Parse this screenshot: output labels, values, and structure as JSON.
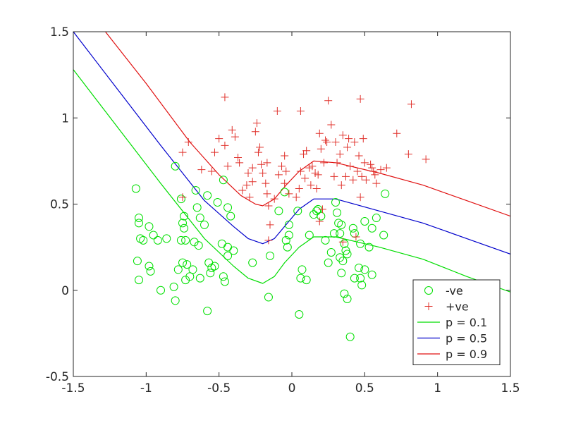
{
  "chart_data": {
    "type": "scatter",
    "title": "",
    "xlabel": "",
    "ylabel": "",
    "xlim": [
      -1.5,
      1.5
    ],
    "ylim": [
      -0.5,
      1.5
    ],
    "xticks": [
      -1.5,
      -1,
      -0.5,
      0,
      0.5,
      1,
      1.5
    ],
    "xtick_labels": [
      "-1.5",
      "-1",
      "-0.5",
      "0",
      "0.5",
      "1",
      "1.5"
    ],
    "yticks": [
      -0.5,
      0,
      0.5,
      1,
      1.5
    ],
    "ytick_labels": [
      "-0.5",
      "0",
      "0.5",
      "1",
      "1.5"
    ],
    "grid": false,
    "legend_position": "bottom-right",
    "colors": {
      "neg": "#00e000",
      "pos": "#e0302a",
      "p01": "#00dd00",
      "p05": "#0000cc",
      "p09": "#e01010",
      "axis": "#262626"
    },
    "legend": [
      {
        "label": "-ve",
        "kind": "circle",
        "color": "#00e000"
      },
      {
        "label": "+ve",
        "kind": "plus",
        "color": "#e0302a"
      },
      {
        "label": "p = 0.1",
        "kind": "line",
        "color": "#00dd00"
      },
      {
        "label": "p = 0.5",
        "kind": "line",
        "color": "#0000cc"
      },
      {
        "label": "p = 0.9",
        "kind": "line",
        "color": "#e01010"
      }
    ],
    "series": [
      {
        "name": "-ve",
        "kind": "scatter",
        "marker": "circle",
        "color": "#00e000",
        "points": [
          [
            -1.07,
            0.59
          ],
          [
            -1.05,
            0.42
          ],
          [
            -1.05,
            0.39
          ],
          [
            -1.04,
            0.3
          ],
          [
            -1.02,
            0.29
          ],
          [
            -1.06,
            0.17
          ],
          [
            -1.05,
            0.06
          ],
          [
            -0.98,
            0.37
          ],
          [
            -0.95,
            0.32
          ],
          [
            -0.92,
            0.29
          ],
          [
            -0.98,
            0.14
          ],
          [
            -0.97,
            0.11
          ],
          [
            -0.9,
            0.0
          ],
          [
            -0.86,
            0.3
          ],
          [
            -0.8,
            0.72
          ],
          [
            -0.76,
            0.53
          ],
          [
            -0.74,
            0.43
          ],
          [
            -0.75,
            0.39
          ],
          [
            -0.74,
            0.36
          ],
          [
            -0.76,
            0.29
          ],
          [
            -0.73,
            0.29
          ],
          [
            -0.75,
            0.16
          ],
          [
            -0.72,
            0.15
          ],
          [
            -0.7,
            0.08
          ],
          [
            -0.73,
            0.06
          ],
          [
            -0.68,
            0.12
          ],
          [
            -0.66,
            0.58
          ],
          [
            -0.65,
            0.48
          ],
          [
            -0.63,
            0.42
          ],
          [
            -0.6,
            0.38
          ],
          [
            -0.67,
            0.28
          ],
          [
            -0.64,
            0.26
          ],
          [
            -0.57,
            0.16
          ],
          [
            -0.55,
            0.13
          ],
          [
            -0.53,
            0.14
          ],
          [
            -0.56,
            0.1
          ],
          [
            -0.63,
            0.07
          ],
          [
            -0.8,
            -0.06
          ],
          [
            -0.78,
            0.12
          ],
          [
            -0.81,
            0.02
          ],
          [
            -0.58,
            -0.12
          ],
          [
            -0.58,
            0.55
          ],
          [
            -0.51,
            0.51
          ],
          [
            -0.47,
            0.64
          ],
          [
            -0.44,
            0.48
          ],
          [
            -0.42,
            0.43
          ],
          [
            -0.48,
            0.27
          ],
          [
            -0.44,
            0.25
          ],
          [
            -0.44,
            0.2
          ],
          [
            -0.4,
            0.23
          ],
          [
            -0.47,
            0.08
          ],
          [
            -0.46,
            0.05
          ],
          [
            -0.27,
            0.16
          ],
          [
            -0.16,
            -0.04
          ],
          [
            -0.15,
            0.2
          ],
          [
            -0.09,
            0.46
          ],
          [
            -0.05,
            0.57
          ],
          [
            -0.02,
            0.38
          ],
          [
            -0.02,
            0.32
          ],
          [
            -0.04,
            0.29
          ],
          [
            -0.03,
            0.25
          ],
          [
            0.04,
            0.46
          ],
          [
            0.07,
            0.12
          ],
          [
            0.06,
            0.07
          ],
          [
            0.05,
            -0.14
          ],
          [
            0.1,
            0.06
          ],
          [
            0.12,
            0.32
          ],
          [
            0.15,
            0.44
          ],
          [
            0.17,
            0.46
          ],
          [
            0.18,
            0.47
          ],
          [
            0.2,
            0.43
          ],
          [
            0.23,
            0.29
          ],
          [
            0.25,
            0.16
          ],
          [
            0.27,
            0.22
          ],
          [
            0.3,
            0.51
          ],
          [
            0.29,
            0.33
          ],
          [
            0.31,
            0.45
          ],
          [
            0.33,
            0.33
          ],
          [
            0.32,
            0.39
          ],
          [
            0.34,
            0.38
          ],
          [
            0.33,
            0.19
          ],
          [
            0.35,
            0.17
          ],
          [
            0.36,
            0.27
          ],
          [
            0.34,
            0.1
          ],
          [
            0.36,
            -0.02
          ],
          [
            0.37,
            0.23
          ],
          [
            0.38,
            0.21
          ],
          [
            0.38,
            -0.05
          ],
          [
            0.4,
            -0.27
          ],
          [
            0.42,
            0.36
          ],
          [
            0.43,
            0.33
          ],
          [
            0.43,
            0.07
          ],
          [
            0.46,
            0.13
          ],
          [
            0.47,
            0.27
          ],
          [
            0.47,
            0.07
          ],
          [
            0.48,
            0.03
          ],
          [
            0.5,
            0.12
          ],
          [
            0.5,
            0.4
          ],
          [
            0.53,
            0.25
          ],
          [
            0.55,
            0.36
          ],
          [
            0.58,
            0.42
          ],
          [
            0.55,
            0.09
          ],
          [
            0.63,
            0.32
          ],
          [
            0.64,
            0.56
          ]
        ]
      },
      {
        "name": "+ve",
        "kind": "scatter",
        "marker": "plus",
        "color": "#e0302a",
        "points": [
          [
            -0.75,
            0.54
          ],
          [
            -0.75,
            0.8
          ],
          [
            -0.71,
            0.86
          ],
          [
            -0.62,
            0.7
          ],
          [
            -0.55,
            0.69
          ],
          [
            -0.53,
            0.8
          ],
          [
            -0.5,
            0.88
          ],
          [
            -0.46,
            0.84
          ],
          [
            -0.46,
            1.12
          ],
          [
            -0.44,
            0.72
          ],
          [
            -0.41,
            0.93
          ],
          [
            -0.39,
            0.89
          ],
          [
            -0.37,
            0.77
          ],
          [
            -0.36,
            0.74
          ],
          [
            -0.34,
            0.58
          ],
          [
            -0.31,
            0.61
          ],
          [
            -0.3,
            0.68
          ],
          [
            -0.29,
            0.54
          ],
          [
            -0.27,
            0.71
          ],
          [
            -0.27,
            0.63
          ],
          [
            -0.25,
            0.92
          ],
          [
            -0.24,
            0.97
          ],
          [
            -0.23,
            0.8
          ],
          [
            -0.22,
            0.83
          ],
          [
            -0.21,
            0.73
          ],
          [
            -0.2,
            0.68
          ],
          [
            -0.18,
            0.62
          ],
          [
            -0.17,
            0.74
          ],
          [
            -0.17,
            0.56
          ],
          [
            -0.16,
            0.49
          ],
          [
            -0.15,
            0.38
          ],
          [
            -0.12,
            0.53
          ],
          [
            -0.1,
            1.04
          ],
          [
            -0.09,
            0.67
          ],
          [
            -0.07,
            0.72
          ],
          [
            -0.05,
            0.62
          ],
          [
            -0.05,
            0.78
          ],
          [
            -0.04,
            0.69
          ],
          [
            -0.02,
            0.56
          ],
          [
            0.03,
            0.54
          ],
          [
            0.05,
            0.59
          ],
          [
            0.06,
            0.69
          ],
          [
            0.06,
            1.04
          ],
          [
            0.08,
            0.79
          ],
          [
            0.09,
            0.65
          ],
          [
            0.1,
            0.81
          ],
          [
            0.12,
            0.71
          ],
          [
            0.13,
            0.61
          ],
          [
            0.14,
            0.72
          ],
          [
            0.16,
            0.68
          ],
          [
            0.17,
            0.59
          ],
          [
            0.18,
            0.67
          ],
          [
            0.19,
            0.91
          ],
          [
            0.2,
            0.82
          ],
          [
            0.22,
            0.74
          ],
          [
            0.23,
            0.87
          ],
          [
            0.24,
            0.86
          ],
          [
            0.25,
            1.1
          ],
          [
            0.27,
            0.96
          ],
          [
            0.29,
            0.66
          ],
          [
            0.3,
            0.86
          ],
          [
            0.31,
            0.74
          ],
          [
            0.33,
            0.79
          ],
          [
            0.34,
            0.61
          ],
          [
            0.35,
            0.9
          ],
          [
            0.37,
            0.66
          ],
          [
            0.38,
            0.83
          ],
          [
            0.39,
            0.88
          ],
          [
            0.4,
            0.72
          ],
          [
            0.42,
            0.64
          ],
          [
            0.43,
            0.86
          ],
          [
            0.45,
            0.69
          ],
          [
            0.46,
            0.78
          ],
          [
            0.47,
            1.11
          ],
          [
            0.48,
            0.66
          ],
          [
            0.49,
            0.88
          ],
          [
            0.5,
            0.74
          ],
          [
            0.51,
            0.64
          ],
          [
            0.54,
            0.73
          ],
          [
            0.55,
            0.71
          ],
          [
            0.56,
            0.69
          ],
          [
            0.57,
            0.67
          ],
          [
            0.58,
            0.62
          ],
          [
            0.61,
            0.7
          ],
          [
            0.65,
            0.71
          ],
          [
            0.72,
            0.91
          ],
          [
            0.8,
            0.79
          ],
          [
            0.82,
            1.08
          ],
          [
            0.92,
            0.76
          ],
          [
            0.35,
            0.28
          ],
          [
            0.44,
            0.31
          ],
          [
            0.47,
            0.54
          ],
          [
            0.19,
            0.4
          ],
          [
            -0.16,
            0.29
          ],
          [
            0.21,
            0.47
          ]
        ]
      },
      {
        "name": "p = 0.1",
        "kind": "line",
        "color": "#00dd00",
        "points": [
          [
            -1.5,
            1.28
          ],
          [
            -1.2,
            0.95
          ],
          [
            -0.9,
            0.62
          ],
          [
            -0.6,
            0.3
          ],
          [
            -0.4,
            0.14
          ],
          [
            -0.3,
            0.07
          ],
          [
            -0.2,
            0.04
          ],
          [
            -0.12,
            0.08
          ],
          [
            -0.05,
            0.16
          ],
          [
            0.05,
            0.25
          ],
          [
            0.15,
            0.31
          ],
          [
            0.3,
            0.31
          ],
          [
            0.6,
            0.25
          ],
          [
            0.9,
            0.18
          ],
          [
            1.2,
            0.08
          ],
          [
            1.5,
            -0.01
          ]
        ]
      },
      {
        "name": "p = 0.5",
        "kind": "line",
        "color": "#0000cc",
        "points": [
          [
            -1.5,
            1.5
          ],
          [
            -1.2,
            1.17
          ],
          [
            -0.9,
            0.84
          ],
          [
            -0.6,
            0.52
          ],
          [
            -0.4,
            0.37
          ],
          [
            -0.3,
            0.3
          ],
          [
            -0.2,
            0.27
          ],
          [
            -0.12,
            0.3
          ],
          [
            -0.04,
            0.38
          ],
          [
            0.05,
            0.47
          ],
          [
            0.15,
            0.53
          ],
          [
            0.3,
            0.53
          ],
          [
            0.6,
            0.46
          ],
          [
            0.9,
            0.39
          ],
          [
            1.2,
            0.3
          ],
          [
            1.5,
            0.21
          ]
        ]
      },
      {
        "name": "p = 0.9",
        "kind": "line",
        "color": "#e01010",
        "points": [
          [
            -1.28,
            1.5
          ],
          [
            -1.0,
            1.2
          ],
          [
            -0.7,
            0.86
          ],
          [
            -0.5,
            0.67
          ],
          [
            -0.35,
            0.55
          ],
          [
            -0.25,
            0.5
          ],
          [
            -0.2,
            0.49
          ],
          [
            -0.12,
            0.53
          ],
          [
            -0.04,
            0.61
          ],
          [
            0.05,
            0.69
          ],
          [
            0.15,
            0.75
          ],
          [
            0.3,
            0.74
          ],
          [
            0.6,
            0.68
          ],
          [
            0.9,
            0.61
          ],
          [
            1.2,
            0.52
          ],
          [
            1.5,
            0.43
          ]
        ]
      }
    ]
  }
}
